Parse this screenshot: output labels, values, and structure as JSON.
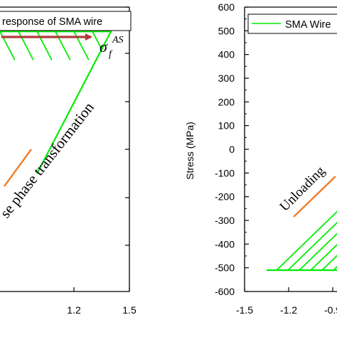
{
  "chart_data": [
    {
      "type": "line",
      "title": "",
      "xlabel": "",
      "ylabel": "",
      "xlim": [
        0.8,
        1.5
      ],
      "x_ticks": [
        "1.2",
        "1.5"
      ],
      "ylim": [
        -800,
        600
      ],
      "legend": {
        "text": "response of SMA wire",
        "position": "top-left"
      },
      "annotations": {
        "sigma_symbol": "σ",
        "sigma_sub": "f",
        "sigma_sup": "AS",
        "phase_label": "se phase transformation"
      },
      "series": [
        {
          "color": "#00ee00",
          "x": [
            0.8,
            1.4,
            1.0
          ],
          "y": [
            480,
            480,
            -220
          ]
        }
      ],
      "colors": {
        "hatch": "#00ee00",
        "arrow_red": "#b03a3a",
        "arrow_orange": "#f08030"
      },
      "grid": false
    },
    {
      "type": "line",
      "title": "",
      "xlabel": "",
      "ylabel": "Stress (MPa)",
      "xlim": [
        -1.5,
        -0.75
      ],
      "x_ticks": [
        "-1.5",
        "-1.2",
        "-0.9"
      ],
      "ylim": [
        -600,
        600
      ],
      "y_ticks": [
        "600",
        "500",
        "400",
        "300",
        "200",
        "100",
        "0",
        "-100",
        "-200",
        "-300",
        "-400",
        "-500",
        "-600"
      ],
      "legend": {
        "text": "SMA Wire",
        "position": "top-left"
      },
      "annotations": {
        "unloading_label": "Unloading"
      },
      "series": [
        {
          "color": "#00ee00",
          "x": [
            -1.35,
            -0.8,
            -0.8
          ],
          "y": [
            -510,
            -510,
            -180
          ]
        }
      ],
      "colors": {
        "hatch": "#00ee00",
        "arrow_orange": "#f08030"
      },
      "grid": false
    }
  ]
}
